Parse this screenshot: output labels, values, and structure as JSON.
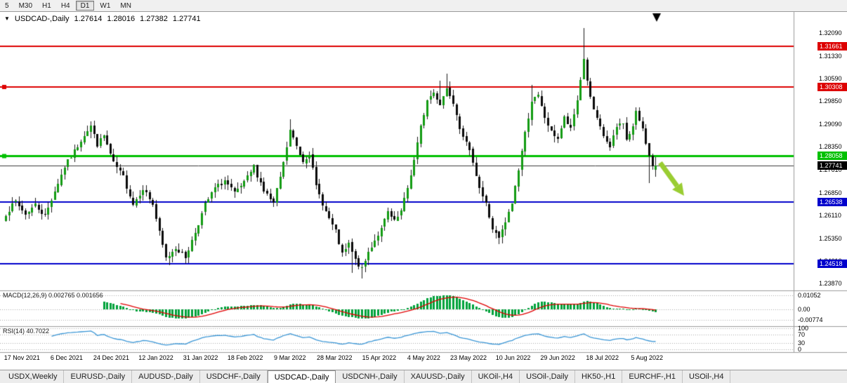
{
  "toolbar": {
    "timeframes": [
      {
        "label": "5",
        "active": false
      },
      {
        "label": "M30",
        "active": false
      },
      {
        "label": "H1",
        "active": false
      },
      {
        "label": "H4",
        "active": false
      },
      {
        "label": "D1",
        "active": true
      },
      {
        "label": "W1",
        "active": false
      },
      {
        "label": "MN",
        "active": false
      }
    ]
  },
  "chart": {
    "title": {
      "symbol": "USDCAD-,Daily",
      "open": "1.27614",
      "high": "1.28016",
      "low": "1.27382",
      "close": "1.27741"
    },
    "price_axis_ticks": [
      "1.32090",
      "1.31330",
      "1.30590",
      "1.29850",
      "1.29090",
      "1.28350",
      "1.27610",
      "1.26850",
      "1.26110",
      "1.25350",
      "1.24610",
      "1.23870"
    ]
  },
  "chart_data": {
    "type": "candlestick",
    "symbol": "USDCAD",
    "timeframe": "Daily",
    "last_ohlc": {
      "open": 1.27614,
      "high": 1.28016,
      "low": 1.27382,
      "close": 1.27741
    },
    "x_axis_labels": [
      "17 Nov 2021",
      "6 Dec 2021",
      "24 Dec 2021",
      "12 Jan 2022",
      "31 Jan 2022",
      "18 Feb 2022",
      "9 Mar 2022",
      "28 Mar 2022",
      "15 Apr 2022",
      "4 May 2022",
      "23 May 2022",
      "10 Jun 2022",
      "29 Jun 2022",
      "18 Jul 2022",
      "5 Aug 2022"
    ],
    "y_range": [
      1.2364,
      1.3276
    ],
    "candle_count": 200,
    "close_anchors": [
      [
        0,
        1.2615
      ],
      [
        3,
        1.2655
      ],
      [
        6,
        1.2615
      ],
      [
        9,
        1.2645
      ],
      [
        12,
        1.2608
      ],
      [
        15,
        1.269
      ],
      [
        18,
        1.277
      ],
      [
        21,
        1.282
      ],
      [
        24,
        1.2875
      ],
      [
        26,
        1.2905
      ],
      [
        28,
        1.2842
      ],
      [
        30,
        1.2872
      ],
      [
        33,
        1.278
      ],
      [
        36,
        1.2736
      ],
      [
        39,
        1.2648
      ],
      [
        42,
        1.27
      ],
      [
        45,
        1.2648
      ],
      [
        47,
        1.2552
      ],
      [
        49,
        1.2468
      ],
      [
        52,
        1.2505
      ],
      [
        55,
        1.2472
      ],
      [
        58,
        1.2556
      ],
      [
        61,
        1.2645
      ],
      [
        64,
        1.27
      ],
      [
        67,
        1.2724
      ],
      [
        70,
        1.2682
      ],
      [
        73,
        1.2716
      ],
      [
        76,
        1.277
      ],
      [
        79,
        1.2692
      ],
      [
        82,
        1.2648
      ],
      [
        85,
        1.278
      ],
      [
        87,
        1.2888
      ],
      [
        89,
        1.2836
      ],
      [
        91,
        1.2788
      ],
      [
        93,
        1.2815
      ],
      [
        95,
        1.2706
      ],
      [
        98,
        1.2622
      ],
      [
        101,
        1.2556
      ],
      [
        103,
        1.2482
      ],
      [
        105,
        1.2515
      ],
      [
        107,
        1.2462
      ],
      [
        109,
        1.2432
      ],
      [
        111,
        1.249
      ],
      [
        113,
        1.253
      ],
      [
        115,
        1.2565
      ],
      [
        117,
        1.262
      ],
      [
        119,
        1.2588
      ],
      [
        121,
        1.2622
      ],
      [
        123,
        1.27
      ],
      [
        125,
        1.279
      ],
      [
        127,
        1.29
      ],
      [
        129,
        1.2988
      ],
      [
        131,
        1.3014
      ],
      [
        133,
        1.2976
      ],
      [
        135,
        1.3028
      ],
      [
        137,
        1.2985
      ],
      [
        139,
        1.2902
      ],
      [
        141,
        1.2846
      ],
      [
        143,
        1.279
      ],
      [
        145,
        1.2702
      ],
      [
        147,
        1.2646
      ],
      [
        149,
        1.2566
      ],
      [
        151,
        1.2532
      ],
      [
        153,
        1.2586
      ],
      [
        155,
        1.265
      ],
      [
        157,
        1.2762
      ],
      [
        159,
        1.288
      ],
      [
        161,
        1.2988
      ],
      [
        163,
        1.3
      ],
      [
        165,
        1.2932
      ],
      [
        167,
        1.2882
      ],
      [
        169,
        1.2864
      ],
      [
        171,
        1.293
      ],
      [
        173,
        1.2892
      ],
      [
        175,
        1.2988
      ],
      [
        176,
        1.3058
      ],
      [
        177,
        1.3124
      ],
      [
        178,
        1.3056
      ],
      [
        179,
        1.2992
      ],
      [
        181,
        1.2922
      ],
      [
        183,
        1.2872
      ],
      [
        185,
        1.2832
      ],
      [
        187,
        1.29
      ],
      [
        189,
        1.2918
      ],
      [
        190,
        1.2856
      ],
      [
        192,
        1.2902
      ],
      [
        193,
        1.2948
      ],
      [
        195,
        1.2898
      ],
      [
        196,
        1.2852
      ],
      [
        197,
        1.2802
      ],
      [
        198,
        1.2768
      ],
      [
        199,
        1.27741
      ]
    ],
    "spike_highs": [
      [
        26,
        1.292
      ],
      [
        87,
        1.2925
      ],
      [
        133,
        1.3052
      ],
      [
        135,
        1.3076
      ],
      [
        161,
        1.3038
      ],
      [
        177,
        1.3224
      ]
    ],
    "spike_lows": [
      [
        50,
        1.2448
      ],
      [
        106,
        1.242
      ],
      [
        109,
        1.2402
      ],
      [
        197,
        1.2716
      ]
    ],
    "levels": [
      {
        "price": 1.31661,
        "label": "1.31661",
        "color": "#dd0000",
        "width": 2,
        "handle": false
      },
      {
        "price": 1.30308,
        "label": "1.30308",
        "color": "#dd0000",
        "width": 2,
        "handle": true
      },
      {
        "price": 1.28058,
        "label": "1.28058",
        "color": "#00c000",
        "width": 3,
        "handle": true
      },
      {
        "price": 1.26538,
        "label": "1.26538",
        "color": "#0000cc",
        "width": 2,
        "handle": false
      },
      {
        "price": 1.24518,
        "label": "1.24518",
        "color": "#0000cc",
        "width": 2,
        "handle": false
      }
    ],
    "current_price": {
      "price": 1.27741,
      "label": "1.27741",
      "line_color": "#3c3c3c",
      "badge_color": "#000000"
    },
    "candle_colors": {
      "up": "#139b13",
      "down": "#0a0a0a",
      "wick": "#1a1a1a"
    },
    "annotations": {
      "trend_arrow": {
        "color": "#9acd32",
        "from": [
          940,
          232
        ],
        "to": [
          974,
          279
        ]
      },
      "top_marker": {
        "color": "#000000",
        "x": 935,
        "y": 19
      }
    }
  },
  "macd": {
    "label": "MACD(12,26,9) 0.002765 0.001656",
    "params": [
      12,
      26,
      9
    ],
    "values": [
      0.002765,
      0.001656
    ],
    "axis_ticks": [
      {
        "label": "0.01052",
        "value": 0.01052
      },
      {
        "label": "0.00",
        "value": 0
      },
      {
        "label": "-0.00774",
        "value": -0.00774
      }
    ],
    "histogram_color": "#00a23b",
    "signal_color": "#e00000",
    "display_max_pos": 0.0105,
    "display_max_neg": 0.0077
  },
  "rsi": {
    "label": "RSI(14) 40.7022",
    "period": 14,
    "value": 40.7022,
    "axis_ticks": [
      {
        "label": "100",
        "value": 100
      },
      {
        "label": "70",
        "value": 70
      },
      {
        "label": "30",
        "value": 30
      },
      {
        "label": "0",
        "value": 0
      }
    ],
    "line_color": "#3a96d6"
  },
  "tabs": [
    {
      "label": "USDX,Weekly",
      "active": false
    },
    {
      "label": "EURUSD-,Daily",
      "active": false
    },
    {
      "label": "AUDUSD-,Daily",
      "active": false
    },
    {
      "label": "USDCHF-,Daily",
      "active": false
    },
    {
      "label": "USDCAD-,Daily",
      "active": true
    },
    {
      "label": "USDCNH-,Daily",
      "active": false
    },
    {
      "label": "XAUUSD-,Daily",
      "active": false
    },
    {
      "label": "UKOil-,H4",
      "active": false
    },
    {
      "label": "USOil-,Daily",
      "active": false
    },
    {
      "label": "HK50-,H1",
      "active": false
    },
    {
      "label": "EURCHF-,H1",
      "active": false
    },
    {
      "label": "USOil-,H4",
      "active": false
    }
  ]
}
